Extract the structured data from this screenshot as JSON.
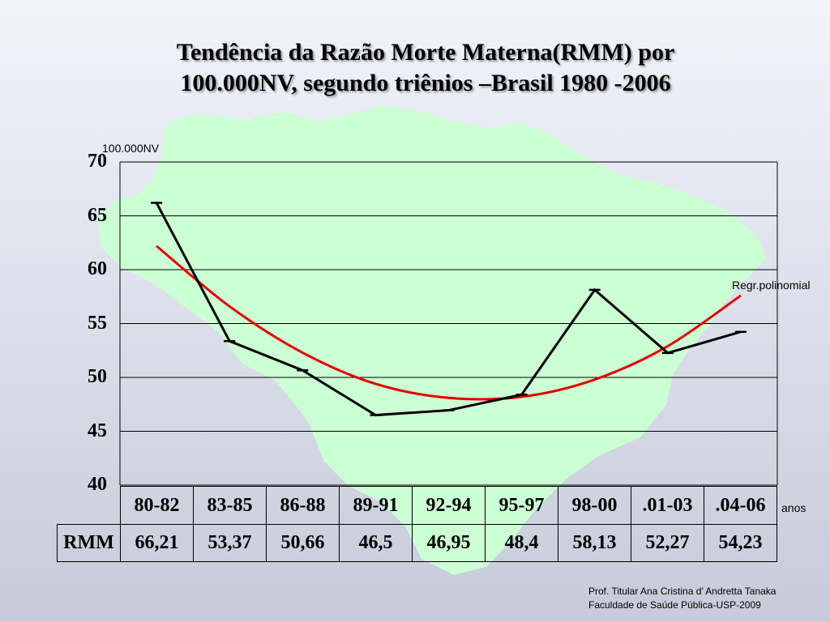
{
  "title": {
    "line1": "Tendência da Razão Morte Materna(RMM) por",
    "line2": "100.000NV, segundo triênios –Brasil 1980 -2006"
  },
  "colors": {
    "background_top": "#f2f4fb",
    "map_fill": "#ccffd4",
    "observed_line": "#000000",
    "regression_line": "#e00000"
  },
  "chart_data": {
    "type": "line",
    "y_unit_label": "100.000NV",
    "ylim": [
      40,
      70
    ],
    "yticks": [
      70,
      65,
      60,
      55,
      50,
      45,
      40
    ],
    "grid": true,
    "categories": [
      "80-82",
      "83-85",
      "86-88",
      "89-91",
      "92-94",
      "95-97",
      "98-00",
      ".01-03",
      ".04-06"
    ],
    "x_axis_label": "anos",
    "series": [
      {
        "name": "RMM",
        "values": [
          66.21,
          53.37,
          50.66,
          46.5,
          46.95,
          48.4,
          58.13,
          52.27,
          54.23
        ],
        "value_labels": [
          "66,21",
          "53,37",
          "50,66",
          "46,5",
          "46,95",
          "48,4",
          "58,13",
          "52,27",
          "54,23"
        ]
      },
      {
        "name": "Regr.polinomial",
        "values": [
          62.2,
          56.6,
          52.3,
          49.4,
          48.1,
          48.2,
          49.8,
          52.9,
          57.6
        ]
      }
    ]
  },
  "credit": {
    "line1": "Prof. Titular Ana Cristina d’ Andretta Tanaka",
    "line2": "Faculdade de Saúde Pública-USP-2009"
  }
}
